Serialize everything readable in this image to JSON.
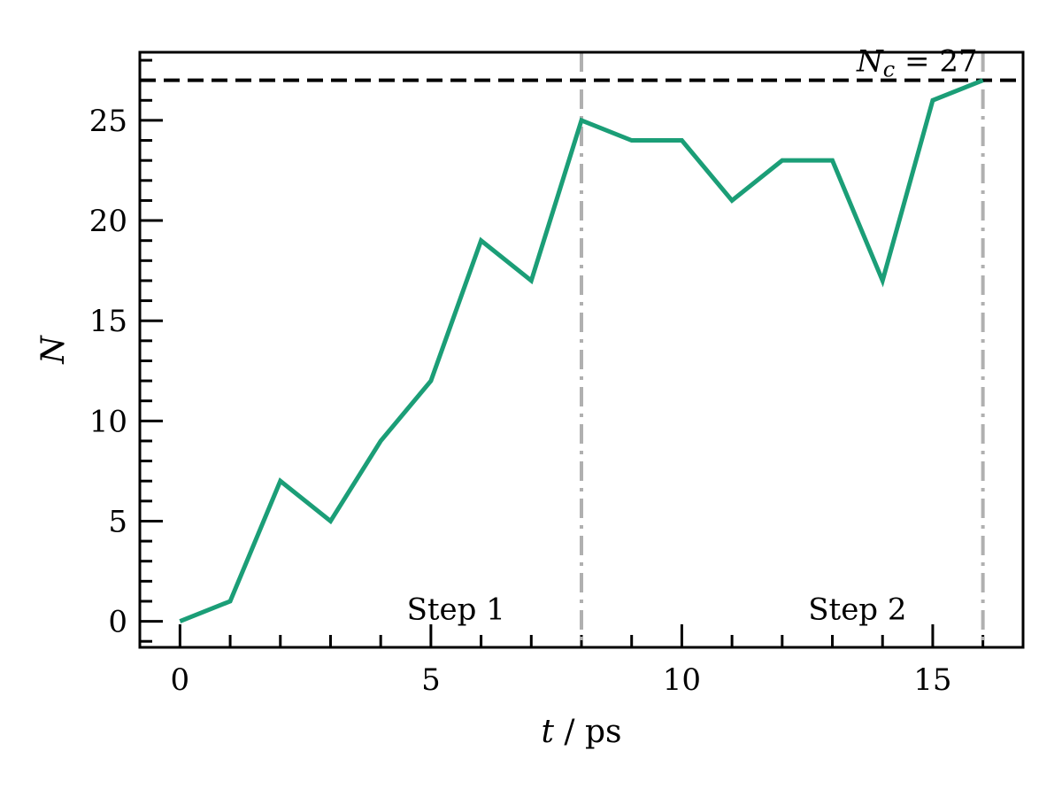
{
  "chart_data": {
    "type": "line",
    "xlabel_var": "t",
    "xlabel_unit": " / ps",
    "ylabel": "N",
    "xlim": [
      -0.8,
      16.8
    ],
    "ylim": [
      -1.3,
      28.4
    ],
    "xticks": [
      0,
      5,
      10,
      15
    ],
    "yticks": [
      0,
      5,
      10,
      15,
      20,
      25
    ],
    "x_minor_step": 1,
    "y_minor_step": 1,
    "series": [
      {
        "color": "#1b9e77",
        "x": [
          0,
          1,
          2,
          3,
          4,
          5,
          6,
          7,
          8,
          9,
          10,
          11,
          12,
          13,
          14,
          15,
          16
        ],
        "y": [
          0,
          1,
          7,
          5,
          9,
          12,
          19,
          17,
          25,
          24,
          24,
          21,
          23,
          23,
          17,
          26,
          27
        ]
      }
    ],
    "threshold": {
      "y": 27,
      "label_var": "N",
      "label_sub": "c",
      "label_rest": " = 27",
      "color": "#000000",
      "style": "dashed"
    },
    "vlines": [
      {
        "x": 8,
        "color": "#b0b0b0",
        "style": "dashdot"
      },
      {
        "x": 16,
        "color": "#b0b0b0",
        "style": "dashdot"
      }
    ],
    "annotations": [
      {
        "text": "Step 1",
        "x": 5.5,
        "y": 0.1
      },
      {
        "text": "Step 2",
        "x": 13.5,
        "y": 0.1
      }
    ],
    "grid": false,
    "tick_direction": "in"
  }
}
